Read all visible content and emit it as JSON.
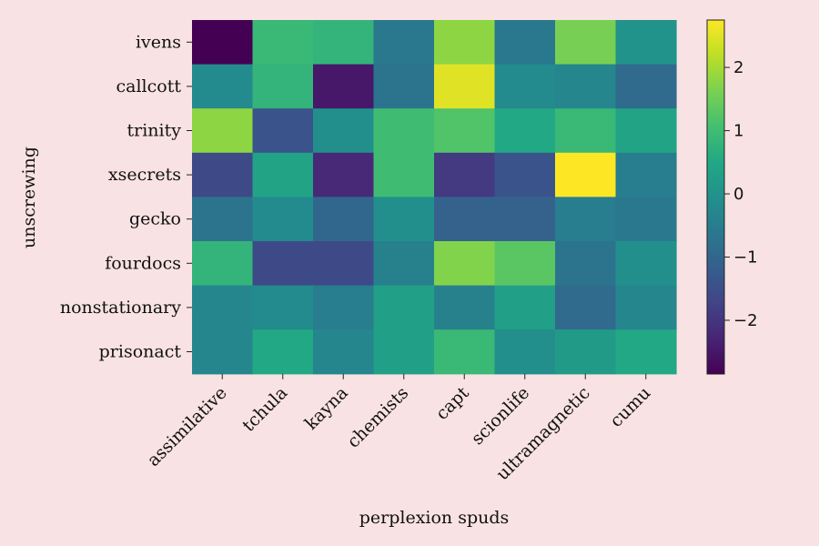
{
  "chart_data": {
    "type": "heatmap",
    "title": "",
    "xlabel": "perplexion spuds",
    "ylabel": "unscrewing",
    "x_categories": [
      "assimilative",
      "tchula",
      "kayna",
      "chemists",
      "capt",
      "scionlife",
      "ultramagnetic",
      "cumu"
    ],
    "y_categories": [
      "ivens",
      "callcott",
      "trinity",
      "xsecrets",
      "gecko",
      "fourdocs",
      "nonstationary",
      "prisonact"
    ],
    "values": [
      [
        -2.85,
        0.9,
        0.8,
        -0.6,
        1.8,
        -0.6,
        1.6,
        0.0
      ],
      [
        -0.2,
        0.8,
        -2.5,
        -0.7,
        2.5,
        -0.2,
        -0.3,
        -0.9
      ],
      [
        1.8,
        -1.4,
        -0.1,
        1.0,
        1.2,
        0.5,
        0.9,
        0.4
      ],
      [
        -1.6,
        0.4,
        -2.2,
        1.0,
        -1.9,
        -1.4,
        2.75,
        -0.5
      ],
      [
        -0.7,
        -0.2,
        -1.0,
        -0.1,
        -1.1,
        -1.1,
        -0.5,
        -0.6
      ],
      [
        0.8,
        -1.6,
        -1.6,
        -0.4,
        1.7,
        1.3,
        -0.7,
        -0.1
      ],
      [
        -0.3,
        -0.2,
        -0.5,
        0.3,
        -0.4,
        0.3,
        -0.9,
        -0.3
      ],
      [
        -0.3,
        0.5,
        -0.3,
        0.3,
        0.9,
        -0.1,
        0.2,
        0.5
      ]
    ],
    "colorscale": "viridis",
    "vmin": -2.85,
    "vmax": 2.75,
    "colorbar_ticks": [
      2,
      1,
      0,
      -1,
      -2
    ],
    "colorbar_tick_labels": [
      "2",
      "1",
      "0",
      "−1",
      "−2"
    ],
    "grid": false,
    "legend": "colorbar-right"
  }
}
